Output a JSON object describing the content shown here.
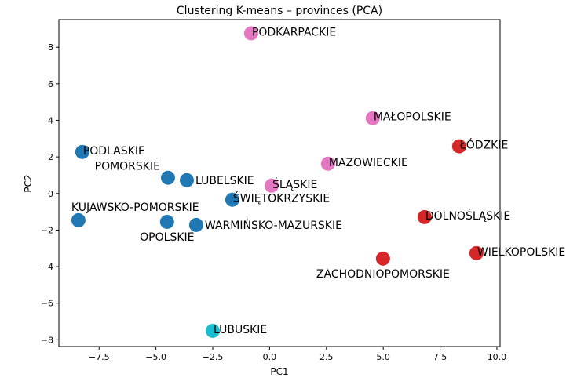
{
  "chart_data": {
    "type": "scatter",
    "title": "Clustering K-means – provinces (PCA)",
    "xlabel": "PC1",
    "ylabel": "PC2",
    "xlim": [
      -9.27,
      10.14
    ],
    "ylim": [
      -8.37,
      9.51
    ],
    "xticks": [
      -7.5,
      -5.0,
      -2.5,
      0.0,
      2.5,
      5.0,
      7.5,
      10.0
    ],
    "xtick_labels": [
      "−7.5",
      "−5.0",
      "−2.5",
      "0.0",
      "2.5",
      "5.0",
      "7.5",
      "10.0"
    ],
    "yticks": [
      -8,
      -6,
      -4,
      -2,
      0,
      2,
      4,
      6,
      8
    ],
    "ytick_labels": [
      "−8",
      "−6",
      "−4",
      "−2",
      "0",
      "2",
      "4",
      "6",
      "8"
    ],
    "grid": false,
    "cluster_colors": [
      "#1f77b4",
      "#d62728",
      "#e377c2",
      "#17becf"
    ],
    "points": [
      {
        "label": "PODKARPACKIE",
        "x": -0.81,
        "y": 8.76,
        "cluster": 2
      },
      {
        "label": "MAŁOPOLSKIE",
        "x": 4.54,
        "y": 4.12,
        "cluster": 2
      },
      {
        "label": "MAZOWIECKIE",
        "x": 2.57,
        "y": 1.63,
        "cluster": 2
      },
      {
        "label": "ŚLĄSKIE",
        "x": 0.09,
        "y": 0.43,
        "cluster": 2
      },
      {
        "label": "ŁÓDZKIE",
        "x": 8.34,
        "y": 2.58,
        "cluster": 1
      },
      {
        "label": "DOLNOŚLĄSKIE",
        "x": 6.82,
        "y": -1.29,
        "cluster": 1
      },
      {
        "label": "WIELKOPOLSKIE",
        "x": 9.1,
        "y": -3.26,
        "cluster": 1
      },
      {
        "label": "ZACHODNIOPOMORSKIE",
        "x": 4.99,
        "y": -3.56,
        "cluster": 1
      },
      {
        "label": "LUBUSKIE",
        "x": -2.5,
        "y": -7.51,
        "cluster": 3
      },
      {
        "label": "PODLASKIE",
        "x": -8.24,
        "y": 2.27,
        "cluster": 0
      },
      {
        "label": "POMORSKIE",
        "x": -4.47,
        "y": 0.86,
        "cluster": 0
      },
      {
        "label": "LUBELSKIE",
        "x": -3.64,
        "y": 0.73,
        "cluster": 0
      },
      {
        "label": "ŚWIĘTOKRZYSKIE",
        "x": -1.64,
        "y": -0.34,
        "cluster": 0
      },
      {
        "label": "KUJAWSKO-POMORSKIE",
        "x": -8.41,
        "y": -1.46,
        "cluster": 0
      },
      {
        "label": "OPOLSKIE",
        "x": -4.51,
        "y": -1.55,
        "cluster": 0
      },
      {
        "label": "WARMIŃSKO-MAZURSKIE",
        "x": -3.23,
        "y": -1.72,
        "cluster": 0
      }
    ]
  }
}
